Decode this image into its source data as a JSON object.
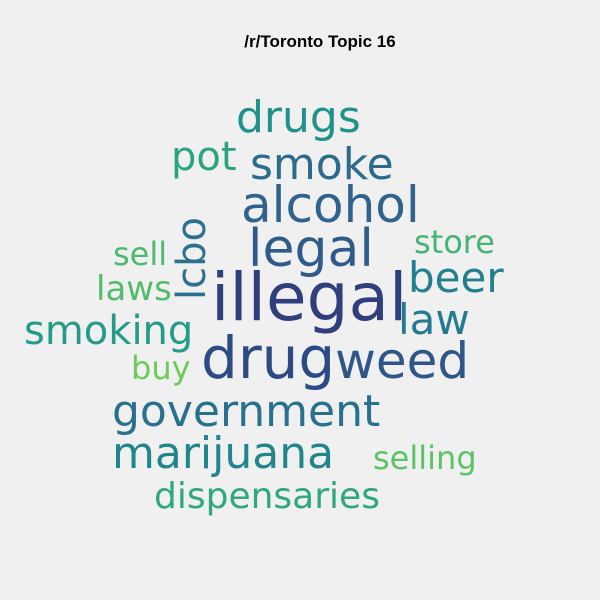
{
  "title": "/r/Toronto Topic 16",
  "words": [
    {
      "text": "illegal",
      "color": "#2f3f7e"
    },
    {
      "text": "drug",
      "color": "#2c4a83"
    },
    {
      "text": "weed",
      "color": "#2e5689"
    },
    {
      "text": "legal",
      "color": "#2f5b8c"
    },
    {
      "text": "alcohol",
      "color": "#2f628d"
    },
    {
      "text": "smoke",
      "color": "#2a6b8e"
    },
    {
      "text": "government",
      "color": "#27718e"
    },
    {
      "text": "lcbo",
      "color": "#2b708e"
    },
    {
      "text": "law",
      "color": "#247a8e"
    },
    {
      "text": "beer",
      "color": "#21808d"
    },
    {
      "text": "marijuana",
      "color": "#20868c"
    },
    {
      "text": "drugs",
      "color": "#1f938a"
    },
    {
      "text": "smoking",
      "color": "#239b86"
    },
    {
      "text": "pot",
      "color": "#2ca37f"
    },
    {
      "text": "dispensaries",
      "color": "#2fa97b"
    },
    {
      "text": "store",
      "color": "#46b474"
    },
    {
      "text": "sell",
      "color": "#4cba6f"
    },
    {
      "text": "laws",
      "color": "#52bc6b"
    },
    {
      "text": "selling",
      "color": "#5dc466"
    },
    {
      "text": "buy",
      "color": "#6ecb5b"
    }
  ]
}
